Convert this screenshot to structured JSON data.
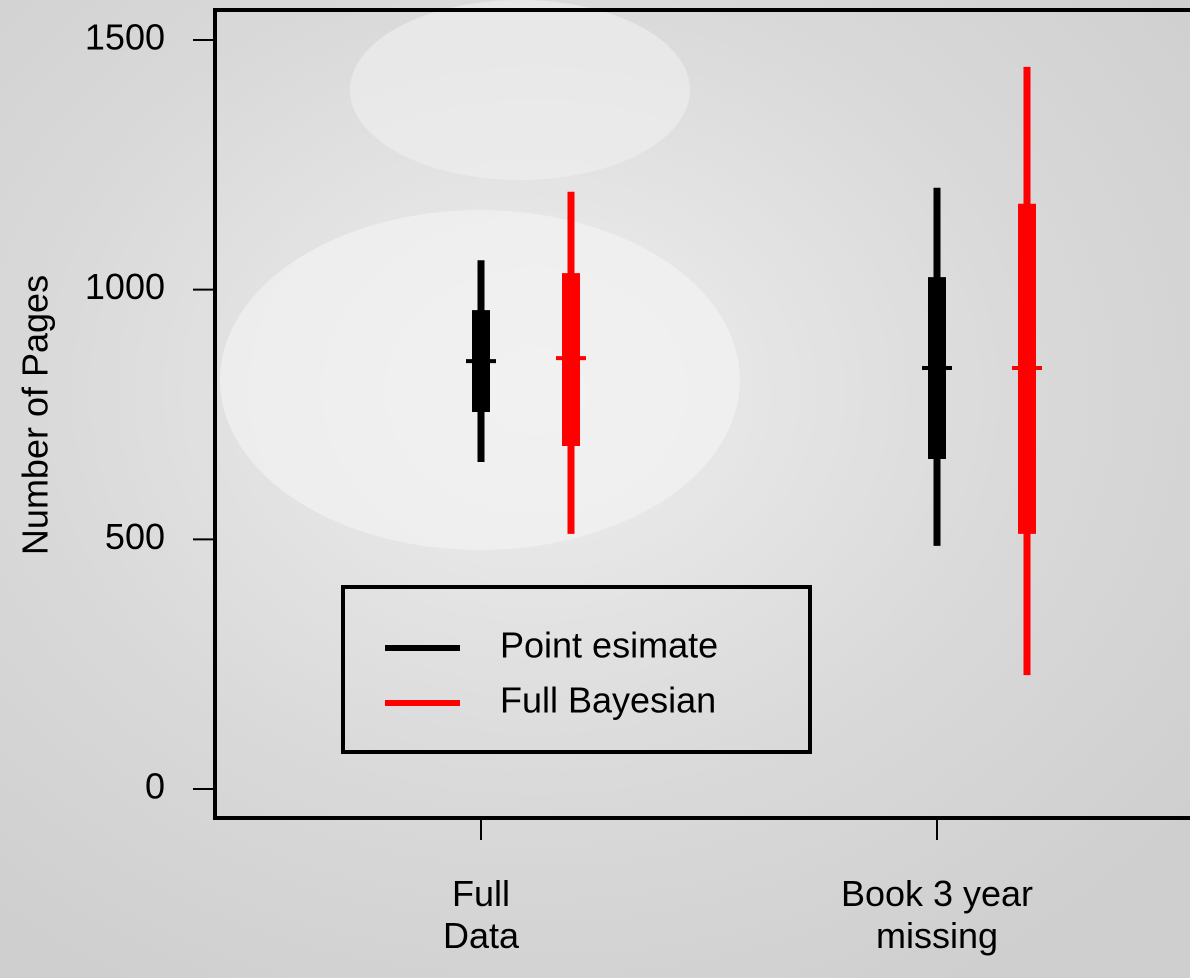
{
  "chart_data": {
    "type": "interval",
    "y_label": "Number of Pages",
    "categories": [
      "Full\nData",
      "Book 3 year\nmissing"
    ],
    "ylim": [
      -58,
      1560
    ],
    "yticks": [
      0,
      500,
      1000,
      1500
    ],
    "series": [
      {
        "name": "Point esimate",
        "color": "#000000",
        "values": [
          857,
          843
        ],
        "inner": [
          [
            755,
            959
          ],
          [
            661,
            1025
          ]
        ],
        "outer": [
          [
            655,
            1059
          ],
          [
            487,
            1204
          ]
        ]
      },
      {
        "name": "Full Bayesian",
        "color": "#ff0000",
        "values": [
          863,
          843
        ],
        "inner": [
          [
            687,
            1033
          ],
          [
            511,
            1172
          ]
        ],
        "outer": [
          [
            511,
            1196
          ],
          [
            228,
            1446
          ]
        ]
      }
    ]
  }
}
